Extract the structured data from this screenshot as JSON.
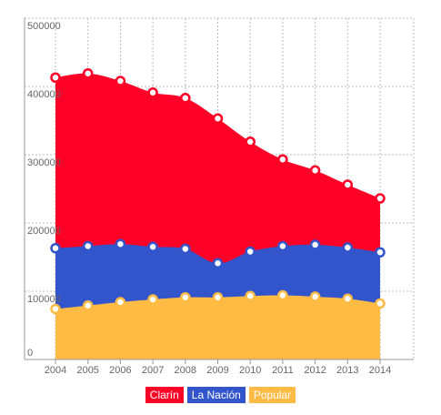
{
  "chart_data": {
    "type": "area",
    "stacked": false,
    "x": [
      "2004",
      "2005",
      "2006",
      "2007",
      "2008",
      "2009",
      "2010",
      "2011",
      "2012",
      "2013",
      "2014"
    ],
    "ylim": [
      0,
      500000
    ],
    "y_ticks": [
      "0",
      "100000",
      "200000",
      "300000",
      "400000",
      "500000"
    ],
    "grid": true,
    "legend_position": "bottom-center",
    "series": [
      {
        "name": "Clarín",
        "color": "#ff0026",
        "values": [
          413000,
          419000,
          408000,
          391000,
          383000,
          353000,
          319000,
          293000,
          277000,
          256000,
          236000
        ]
      },
      {
        "name": "La Nación",
        "color": "#3355cc",
        "values": [
          163000,
          166000,
          169000,
          165000,
          162000,
          141000,
          158000,
          166000,
          168000,
          164000,
          157000
        ]
      },
      {
        "name": "Popular",
        "color": "#ffbb44",
        "values": [
          74000,
          79000,
          84000,
          88000,
          91000,
          91000,
          93000,
          94000,
          92000,
          89000,
          82000
        ]
      }
    ]
  }
}
